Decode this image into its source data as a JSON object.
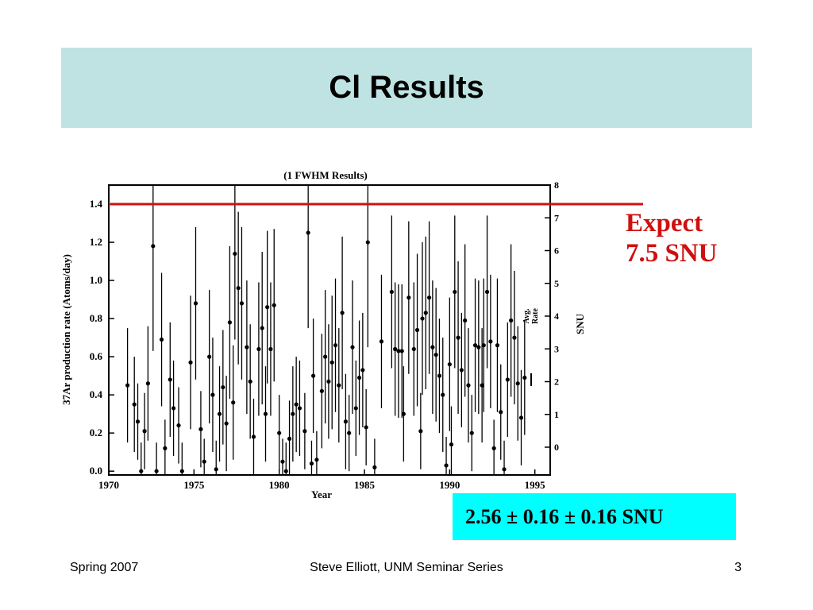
{
  "slide": {
    "title": "Cl Results",
    "expect_line1": "Expect",
    "expect_line2": "7.5 SNU",
    "result": "2.56 ± 0.16 ± 0.16 SNU",
    "footer_left": "Spring 2007",
    "footer_center": "Steve Elliott, UNM Seminar Series",
    "footer_right": "3"
  },
  "colors": {
    "title_band": "#bfe3e3",
    "expect_red": "#d01010",
    "result_box": "#00ffff"
  },
  "chart_data": {
    "type": "scatter",
    "title": "(1 FWHM Results)",
    "xlabel": "Year",
    "ylabel": "37Ar production rate (Atoms/day)",
    "y2label": "SNU",
    "avg_label_line1": "Avg.",
    "avg_label_line2": "Rate",
    "xlim": [
      1970,
      1995
    ],
    "ylim": [
      0.0,
      1.5
    ],
    "y2lim": [
      0,
      8
    ],
    "xticks": [
      1970,
      1975,
      1980,
      1985,
      1990,
      1995
    ],
    "yticks": [
      0.0,
      0.2,
      0.4,
      0.6,
      0.8,
      1.0,
      1.2,
      1.4
    ],
    "y2ticks": [
      0,
      1,
      2,
      3,
      4,
      5,
      6,
      7,
      8
    ],
    "xtick_labels": [
      "1970",
      "1975",
      "1980",
      "1985",
      "1990",
      "1995"
    ],
    "ytick_labels": [
      "0.0",
      "0.2",
      "0.4",
      "0.6",
      "0.8",
      "1.0",
      "1.2",
      "1.4"
    ],
    "y2tick_labels": [
      "0",
      "1",
      "2",
      "3",
      "4",
      "5",
      "6",
      "7",
      "8"
    ],
    "expected_rate": 1.4,
    "average_rate": 0.48,
    "points": [
      [
        1971.1,
        0.45,
        0.3
      ],
      [
        1971.5,
        0.35,
        0.25
      ],
      [
        1971.7,
        0.26,
        0.2
      ],
      [
        1971.9,
        0.0,
        0.15
      ],
      [
        1972.1,
        0.21,
        0.2
      ],
      [
        1972.3,
        0.46,
        0.3
      ],
      [
        1972.6,
        1.18,
        0.55
      ],
      [
        1972.8,
        0.0,
        0.15
      ],
      [
        1973.1,
        0.69,
        0.35
      ],
      [
        1973.3,
        0.12,
        0.15
      ],
      [
        1973.6,
        0.48,
        0.3
      ],
      [
        1973.8,
        0.33,
        0.25
      ],
      [
        1974.1,
        0.24,
        0.2
      ],
      [
        1974.3,
        0.0,
        0.15
      ],
      [
        1974.8,
        0.57,
        0.35
      ],
      [
        1975.1,
        0.88,
        0.4
      ],
      [
        1975.4,
        0.22,
        0.2
      ],
      [
        1975.6,
        0.05,
        0.12
      ],
      [
        1975.9,
        0.6,
        0.35
      ],
      [
        1976.1,
        0.4,
        0.3
      ],
      [
        1976.3,
        0.01,
        0.15
      ],
      [
        1976.5,
        0.3,
        0.25
      ],
      [
        1976.7,
        0.44,
        0.3
      ],
      [
        1976.9,
        0.25,
        0.25
      ],
      [
        1977.1,
        0.78,
        0.4
      ],
      [
        1977.3,
        0.36,
        0.3
      ],
      [
        1977.4,
        1.14,
        0.45
      ],
      [
        1977.6,
        0.96,
        0.4
      ],
      [
        1977.8,
        0.88,
        0.4
      ],
      [
        1978.1,
        0.65,
        0.35
      ],
      [
        1978.3,
        0.47,
        0.3
      ],
      [
        1978.5,
        0.18,
        0.2
      ],
      [
        1978.8,
        0.64,
        0.35
      ],
      [
        1979.0,
        0.75,
        0.4
      ],
      [
        1979.2,
        0.3,
        0.25
      ],
      [
        1979.3,
        0.86,
        0.4
      ],
      [
        1979.5,
        0.64,
        0.35
      ],
      [
        1979.7,
        0.87,
        0.4
      ],
      [
        1980.0,
        0.2,
        0.2
      ],
      [
        1980.2,
        0.05,
        0.12
      ],
      [
        1980.4,
        0.0,
        0.15
      ],
      [
        1980.6,
        0.17,
        0.2
      ],
      [
        1980.8,
        0.3,
        0.25
      ],
      [
        1981.0,
        0.35,
        0.25
      ],
      [
        1981.2,
        0.33,
        0.25
      ],
      [
        1981.5,
        0.21,
        0.2
      ],
      [
        1981.7,
        1.25,
        0.5
      ],
      [
        1981.9,
        0.04,
        0.12
      ],
      [
        1982.0,
        0.5,
        0.3
      ],
      [
        1982.2,
        0.06,
        0.15
      ],
      [
        1982.5,
        0.42,
        0.3
      ],
      [
        1982.7,
        0.6,
        0.35
      ],
      [
        1982.9,
        0.47,
        0.3
      ],
      [
        1983.1,
        0.57,
        0.35
      ],
      [
        1983.3,
        0.66,
        0.35
      ],
      [
        1983.5,
        0.45,
        0.3
      ],
      [
        1983.7,
        0.83,
        0.4
      ],
      [
        1983.9,
        0.26,
        0.25
      ],
      [
        1984.1,
        0.2,
        0.2
      ],
      [
        1984.3,
        0.65,
        0.35
      ],
      [
        1984.5,
        0.33,
        0.25
      ],
      [
        1984.7,
        0.49,
        0.3
      ],
      [
        1984.9,
        0.53,
        0.3
      ],
      [
        1985.1,
        0.23,
        0.2
      ],
      [
        1985.2,
        1.2,
        0.55
      ],
      [
        1985.6,
        0.02,
        0.15
      ],
      [
        1986.0,
        0.68,
        0.35
      ],
      [
        1986.6,
        0.94,
        0.4
      ],
      [
        1986.8,
        0.64,
        0.35
      ],
      [
        1987.0,
        0.63,
        0.35
      ],
      [
        1987.2,
        0.63,
        0.35
      ],
      [
        1987.3,
        0.3,
        0.25
      ],
      [
        1987.6,
        0.91,
        0.4
      ],
      [
        1987.9,
        0.64,
        0.35
      ],
      [
        1988.1,
        0.74,
        0.4
      ],
      [
        1988.3,
        0.21,
        0.2
      ],
      [
        1988.4,
        0.8,
        0.4
      ],
      [
        1988.6,
        0.83,
        0.4
      ],
      [
        1988.8,
        0.91,
        0.4
      ],
      [
        1989.0,
        0.65,
        0.35
      ],
      [
        1989.2,
        0.61,
        0.35
      ],
      [
        1989.4,
        0.5,
        0.3
      ],
      [
        1989.6,
        0.4,
        0.3
      ],
      [
        1989.8,
        0.03,
        0.15
      ],
      [
        1990.0,
        0.56,
        0.35
      ],
      [
        1990.1,
        0.14,
        0.2
      ],
      [
        1990.3,
        0.94,
        0.4
      ],
      [
        1990.5,
        0.7,
        0.4
      ],
      [
        1990.7,
        0.53,
        0.3
      ],
      [
        1990.9,
        0.79,
        0.4
      ],
      [
        1991.1,
        0.45,
        0.3
      ],
      [
        1991.3,
        0.2,
        0.2
      ],
      [
        1991.5,
        0.66,
        0.35
      ],
      [
        1991.7,
        0.65,
        0.35
      ],
      [
        1991.9,
        0.45,
        0.3
      ],
      [
        1992.0,
        0.66,
        0.35
      ],
      [
        1992.2,
        0.94,
        0.4
      ],
      [
        1992.4,
        0.68,
        0.35
      ],
      [
        1992.6,
        0.12,
        0.15
      ],
      [
        1992.8,
        0.66,
        0.35
      ],
      [
        1993.0,
        0.31,
        0.25
      ],
      [
        1993.2,
        0.01,
        0.15
      ],
      [
        1993.4,
        0.48,
        0.3
      ],
      [
        1993.6,
        0.79,
        0.4
      ],
      [
        1993.8,
        0.7,
        0.35
      ],
      [
        1994.0,
        0.46,
        0.3
      ],
      [
        1994.2,
        0.28,
        0.25
      ],
      [
        1994.4,
        0.49,
        0.3
      ]
    ]
  }
}
